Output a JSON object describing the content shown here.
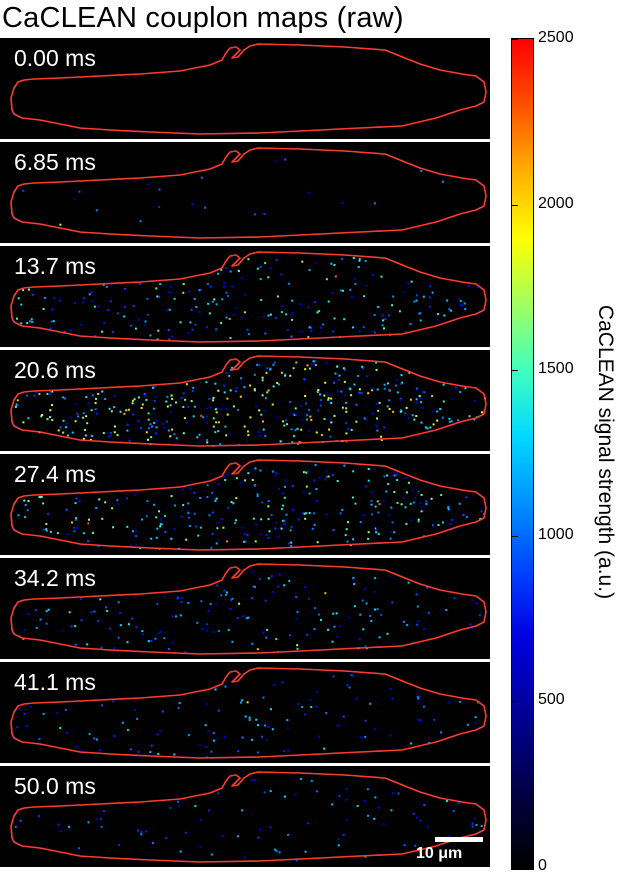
{
  "title": "CaCLEAN couplon maps (raw)",
  "panels": [
    {
      "time": "0.00 ms",
      "intensity": 0
    },
    {
      "time": "6.85 ms",
      "intensity": 0.05
    },
    {
      "time": "13.7 ms",
      "intensity": 0.55
    },
    {
      "time": "20.6 ms",
      "intensity": 1.0
    },
    {
      "time": "27.4 ms",
      "intensity": 0.7
    },
    {
      "time": "34.2 ms",
      "intensity": 0.4
    },
    {
      "time": "41.1 ms",
      "intensity": 0.28
    },
    {
      "time": "50.0 ms",
      "intensity": 0.22
    }
  ],
  "scale_bar": {
    "label": "10 μm"
  },
  "colorbar": {
    "label": "CaCLEAN signal strength (a.u.)",
    "min": 0,
    "max": 2500,
    "ticks": [
      "0",
      "500",
      "1000",
      "1500",
      "2000",
      "2500"
    ],
    "colormap": "jet"
  },
  "colors": {
    "outline": "#ff3b2f",
    "background": "#000000"
  }
}
